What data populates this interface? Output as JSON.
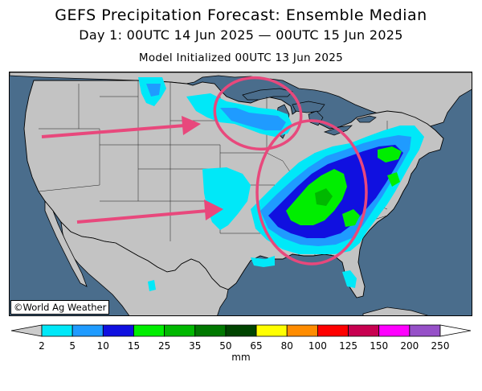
{
  "title": "GEFS Precipitation Forecast: Ensemble Median",
  "subtitle": "Day 1: 00UTC 14 Jun 2025 — 00UTC 15 Jun 2025",
  "init_line": "Model Initialized 00UTC 13 Jun 2025",
  "credit": "©World Ag Weather",
  "colorbar": {
    "units": "mm",
    "ticks": [
      "2",
      "5",
      "10",
      "15",
      "25",
      "35",
      "50",
      "65",
      "80",
      "100",
      "125",
      "150",
      "200",
      "250"
    ],
    "colors": [
      "#00e8f8",
      "#1f9bff",
      "#1010e0",
      "#00ee00",
      "#00b800",
      "#007800",
      "#004400",
      "#ffff00",
      "#ff8c00",
      "#ff0000",
      "#c80050",
      "#ff00ff",
      "#9650c8"
    ],
    "under_color": "#cccccc",
    "over_color": "#ffffff"
  },
  "colors": {
    "land": "#c3c3c3",
    "water": "#4a6d8c",
    "annotation": "#e8487c"
  },
  "annotations": {
    "arrows": 2,
    "circles": 2
  }
}
